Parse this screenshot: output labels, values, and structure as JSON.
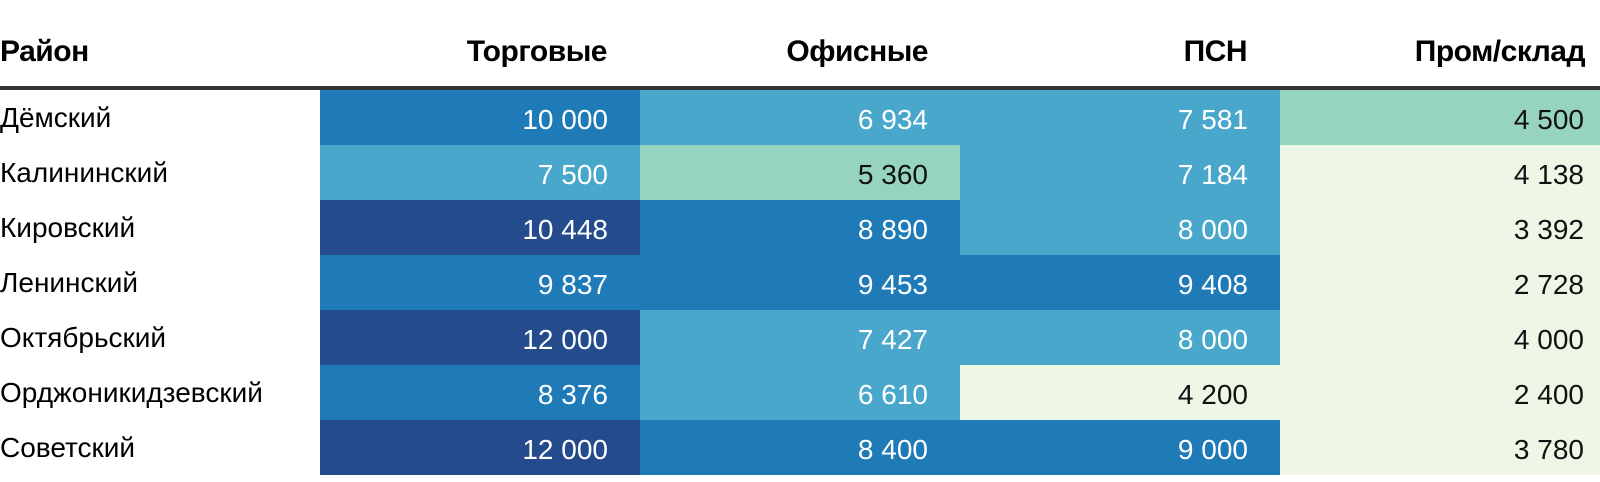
{
  "chart_data": {
    "type": "heatmap",
    "columns": [
      "Район",
      "Торговые",
      "Офисные",
      "ПСН",
      "Пром/склад"
    ],
    "rows": [
      {
        "name": "Дёмский",
        "values": [
          "10 000",
          "6 934",
          "7 581",
          "4 500"
        ]
      },
      {
        "name": "Калининский",
        "values": [
          "7 500",
          "5 360",
          "7 184",
          "4 138"
        ]
      },
      {
        "name": "Кировский",
        "values": [
          "10 448",
          "8 890",
          "8 000",
          "3 392"
        ]
      },
      {
        "name": "Ленинский",
        "values": [
          "9 837",
          "9 453",
          "9 408",
          "2 728"
        ]
      },
      {
        "name": "Октябрьский",
        "values": [
          "12 000",
          "7 427",
          "8 000",
          "4 000"
        ]
      },
      {
        "name": "Орджоникидзевский",
        "values": [
          "8 376",
          "6 610",
          "4 200",
          "2 400"
        ]
      },
      {
        "name": "Советский",
        "values": [
          "12 000",
          "8 400",
          "9 000",
          "3 780"
        ]
      }
    ],
    "numeric": [
      [
        10000,
        6934,
        7581,
        4500
      ],
      [
        7500,
        5360,
        7184,
        4138
      ],
      [
        10448,
        8890,
        8000,
        3392
      ],
      [
        9837,
        9453,
        9408,
        2728
      ],
      [
        12000,
        7427,
        8000,
        4000
      ],
      [
        8376,
        6610,
        4200,
        2400
      ],
      [
        12000,
        8400,
        9000,
        3780
      ]
    ],
    "cell_colors": [
      [
        "#1f7ab8",
        "#4aa7cc",
        "#4aa7cc",
        "#96d4c0"
      ],
      [
        "#4aa7cc",
        "#96d4c0",
        "#4aa7cc",
        "#eef7e6"
      ],
      [
        "#244c8d",
        "#1f7ab8",
        "#4aa7cc",
        "#eef7e6"
      ],
      [
        "#1f7ab8",
        "#1f7ab8",
        "#1f7ab8",
        "#eef7e6"
      ],
      [
        "#244c8d",
        "#4aa7cc",
        "#4aa7cc",
        "#eef7e6"
      ],
      [
        "#1f7ab8",
        "#4aa7cc",
        "#eef7e6",
        "#eef7e6"
      ],
      [
        "#244c8d",
        "#1f7ab8",
        "#1f7ab8",
        "#eef7e6"
      ]
    ],
    "text_colors": {
      "on_dark": "#ffffff",
      "on_light": "#111111"
    },
    "light_colors": [
      "#96d4c0",
      "#eef7e6"
    ]
  }
}
